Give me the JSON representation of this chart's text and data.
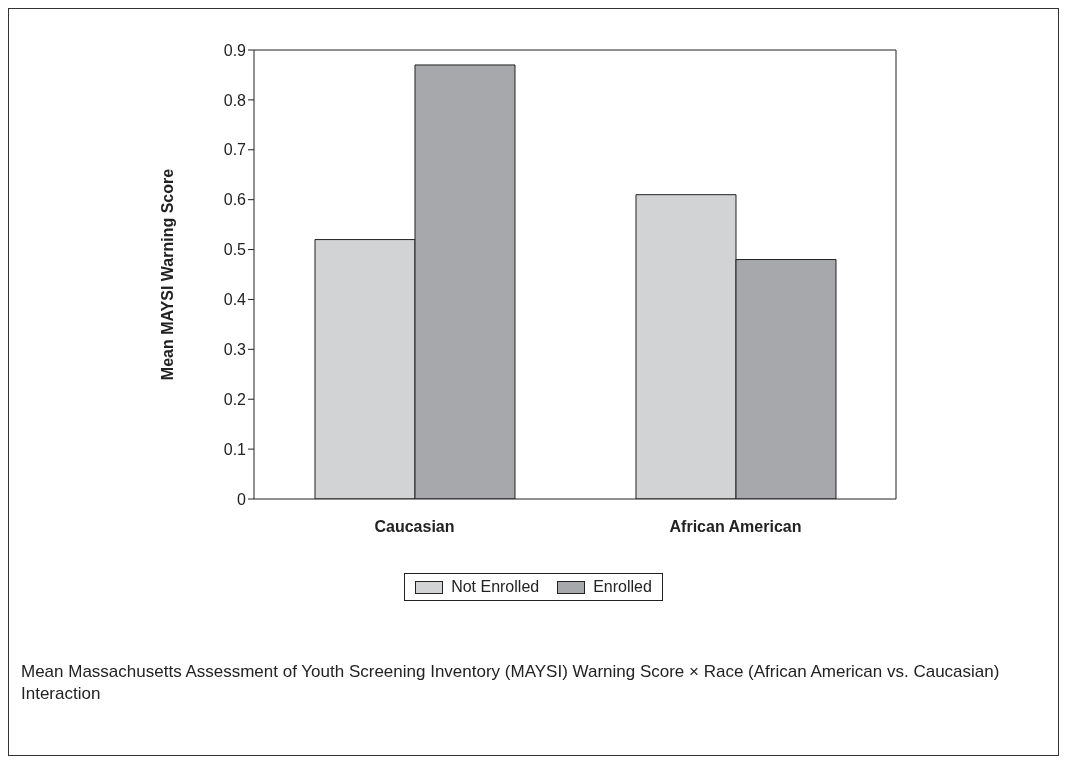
{
  "chart_data": {
    "type": "bar",
    "categories": [
      "Caucasian",
      "African American"
    ],
    "series": [
      {
        "name": "Not Enrolled",
        "color": "#d2d3d5",
        "values": [
          0.52,
          0.61
        ]
      },
      {
        "name": "Enrolled",
        "color": "#a7a8ab",
        "values": [
          0.87,
          0.48
        ]
      }
    ],
    "ylabel": "Mean MAYSI Warning Score",
    "ylim": [
      0,
      0.9
    ],
    "yticks": [
      0,
      0.1,
      0.2,
      0.3,
      0.4,
      0.5,
      0.6,
      0.7,
      0.8,
      0.9
    ],
    "grid": false,
    "legend": "bottom",
    "annotations": [
      "Mean Massachusetts Assessment of Youth Screening Inventory (MAYSI) Warning Score × Race (African American vs. Caucasian) Interaction"
    ]
  }
}
